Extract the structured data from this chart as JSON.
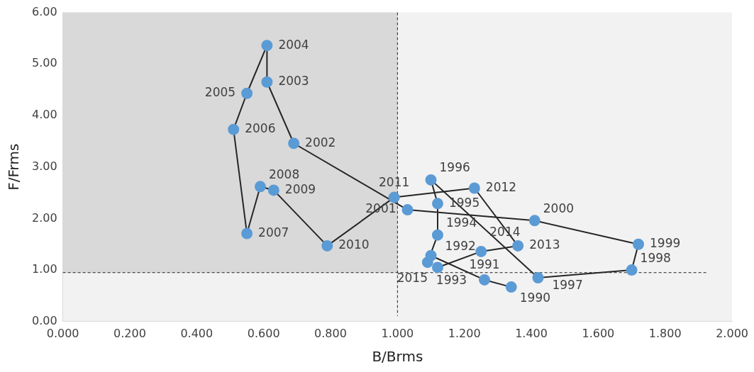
{
  "chart_data": {
    "type": "line",
    "xlabel": "B/Brms",
    "ylabel": "F/Frms",
    "series": [
      {
        "color": "#5b9bd5",
        "x": [
          1.34,
          1.26,
          1.1,
          1.09,
          1.12,
          1.12,
          1.1,
          1.42,
          1.7,
          1.72,
          1.41,
          1.03,
          0.69,
          0.61,
          0.61,
          0.55,
          0.51,
          0.55,
          0.59,
          0.63,
          0.79,
          0.99,
          1.23,
          1.36,
          1.25,
          1.12
        ],
        "values": [
          0.67,
          0.81,
          1.28,
          1.15,
          1.68,
          2.29,
          2.75,
          0.85,
          1.0,
          1.5,
          1.96,
          2.17,
          3.46,
          4.65,
          5.36,
          4.43,
          3.73,
          1.71,
          2.62,
          2.55,
          1.47,
          2.41,
          2.59,
          1.47,
          1.36,
          1.05
        ]
      }
    ],
    "annotations": [
      {
        "text": "1990",
        "x": 1.34,
        "y": 0.67
      },
      {
        "text": "1991",
        "x": 1.26,
        "y": 0.81
      },
      {
        "text": "1992",
        "x": 1.1,
        "y": 1.28
      },
      {
        "text": "1993",
        "x": 1.09,
        "y": 1.15
      },
      {
        "text": "1994",
        "x": 1.12,
        "y": 1.68
      },
      {
        "text": "1995",
        "x": 1.12,
        "y": 2.29
      },
      {
        "text": "1996",
        "x": 1.1,
        "y": 2.75
      },
      {
        "text": "1997",
        "x": 1.42,
        "y": 0.85
      },
      {
        "text": "1998",
        "x": 1.7,
        "y": 1.0
      },
      {
        "text": "1999",
        "x": 1.72,
        "y": 1.5
      },
      {
        "text": "2000",
        "x": 1.41,
        "y": 1.96
      },
      {
        "text": "2001",
        "x": 1.03,
        "y": 2.17
      },
      {
        "text": "2002",
        "x": 0.69,
        "y": 3.46
      },
      {
        "text": "2003",
        "x": 0.61,
        "y": 4.65
      },
      {
        "text": "2004",
        "x": 0.61,
        "y": 5.36
      },
      {
        "text": "2005",
        "x": 0.55,
        "y": 4.43
      },
      {
        "text": "2006",
        "x": 0.51,
        "y": 3.73
      },
      {
        "text": "2007",
        "x": 0.55,
        "y": 1.71
      },
      {
        "text": "2008",
        "x": 0.59,
        "y": 2.62
      },
      {
        "text": "2009",
        "x": 0.63,
        "y": 2.55
      },
      {
        "text": "2010",
        "x": 0.79,
        "y": 1.47
      },
      {
        "text": "2011",
        "x": 0.99,
        "y": 2.41
      },
      {
        "text": "2012",
        "x": 1.23,
        "y": 2.59
      },
      {
        "text": "2013",
        "x": 1.36,
        "y": 1.47
      },
      {
        "text": "2014",
        "x": 1.25,
        "y": 1.36
      },
      {
        "text": "2015",
        "x": 1.12,
        "y": 1.05
      }
    ],
    "xlim": [
      0,
      2
    ],
    "xticks": [
      {
        "value": 0,
        "label": "0.000"
      },
      {
        "value": 0.2,
        "label": "0.200"
      },
      {
        "value": 0.4,
        "label": "0.400"
      },
      {
        "value": 0.6,
        "label": "0.600"
      },
      {
        "value": 0.8,
        "label": "0.800"
      },
      {
        "value": 1,
        "label": "1.000"
      },
      {
        "value": 1.2,
        "label": "1.200"
      },
      {
        "value": 1.4,
        "label": "1.400"
      },
      {
        "value": 1.6,
        "label": "1.600"
      },
      {
        "value": 1.8,
        "label": "1.800"
      },
      {
        "value": 2,
        "label": "2.000"
      }
    ],
    "ylim": [
      0,
      6
    ],
    "yticks": [
      {
        "value": 0,
        "label": "0.00"
      },
      {
        "value": 1,
        "label": "1.00"
      },
      {
        "value": 2,
        "label": "2.00"
      },
      {
        "value": 3,
        "label": "3.00"
      },
      {
        "value": 4,
        "label": "4.00"
      },
      {
        "value": 5,
        "label": "5.00"
      },
      {
        "value": 6,
        "label": "6.00"
      }
    ],
    "ref_lines": [
      {
        "axis": "x",
        "value": 1,
        "line_style": "dashed"
      },
      {
        "axis": "y",
        "value": 0.95,
        "line_style": "dashed"
      }
    ],
    "bands": [
      {
        "axis": "x",
        "from": 0,
        "to": 1,
        "color": "#d9d9d9"
      }
    ],
    "grid": false,
    "legend": false,
    "marker": "circle",
    "line_style": "solid"
  }
}
